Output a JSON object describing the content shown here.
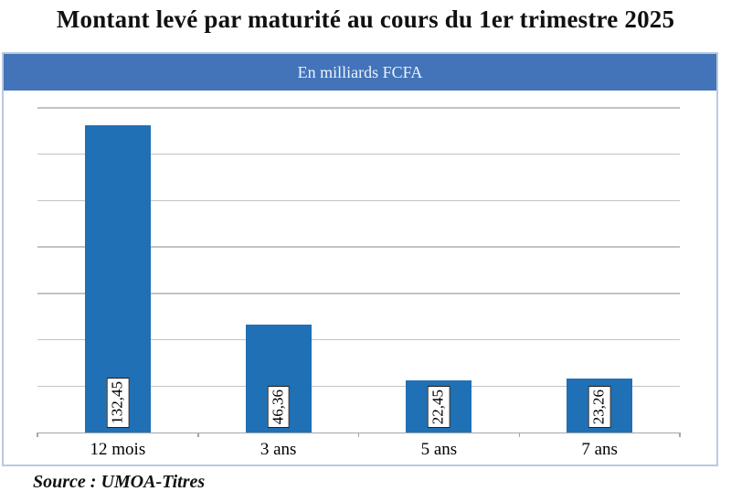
{
  "page": {
    "title": "Montant levé par maturité au cours du 1er trimestre 2025",
    "banner_label": "En milliards FCFA",
    "source_note": "Source : UMOA-Titres"
  },
  "colors": {
    "bar": "#1f70b5",
    "banner_bg": "#4374b9",
    "banner_text": "#eef3fb",
    "frame_border": "#bac9e0",
    "gridline": "#c3c3c3",
    "axis": "#a6a6a6",
    "label_box_border": "#1f1f1f"
  },
  "chart_data": {
    "type": "bar",
    "title": "Montant levé par maturité au cours du 1er trimestre 2025",
    "subtitle": "En milliards FCFA",
    "categories": [
      "12 mois",
      "3 ans",
      "5 ans",
      "7 ans"
    ],
    "values": [
      132.45,
      46.36,
      22.45,
      23.26
    ],
    "value_labels": [
      "132,45",
      "46,36",
      "22,45",
      "23,26"
    ],
    "xlabel": "",
    "ylabel": "",
    "ylim": [
      0,
      140
    ],
    "grid_step": 20,
    "grid": true,
    "legend": false,
    "bar_orientation": "vertical",
    "value_label_rotation": -90,
    "value_label_position": "inside-base"
  }
}
